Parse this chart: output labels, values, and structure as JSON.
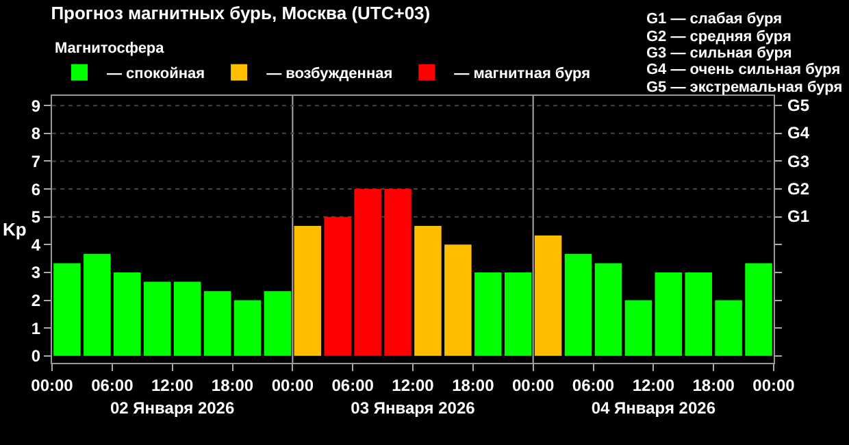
{
  "chart_data": {
    "type": "bar",
    "title": "Прогноз магнитных бурь, Москва (UTC+03)",
    "ylabel": "Kp",
    "legend_title": "Магнитосфера",
    "legend": "top left",
    "grid": false,
    "x": [
      "2026-01-02T01:30",
      "2026-01-02T04:30",
      "2026-01-02T07:30",
      "2026-01-02T10:30",
      "2026-01-02T13:30",
      "2026-01-02T16:30",
      "2026-01-02T19:30",
      "2026-01-02T22:30",
      "2026-01-03T01:30",
      "2026-01-03T04:30",
      "2026-01-03T07:30",
      "2026-01-03T10:30",
      "2026-01-03T13:30",
      "2026-01-03T16:30",
      "2026-01-03T19:30",
      "2026-01-03T22:30",
      "2026-01-04T01:30",
      "2026-01-04T04:30",
      "2026-01-04T07:30",
      "2026-01-04T10:30",
      "2026-01-04T13:30",
      "2026-01-04T16:30",
      "2026-01-04T19:30",
      "2026-01-04T22:30"
    ],
    "series": [
      {
        "name": "— спокойная",
        "color": "#00ff00",
        "values": [
          3.33,
          3.67,
          3,
          2.67,
          2.67,
          2.33,
          2,
          2.33,
          null,
          null,
          null,
          null,
          null,
          null,
          3,
          3,
          null,
          3.67,
          3.33,
          2,
          3,
          3,
          2,
          3.33
        ]
      },
      {
        "name": "— возбужденная",
        "color": "#ffbf00",
        "values": [
          null,
          null,
          null,
          null,
          null,
          null,
          null,
          null,
          4.67,
          null,
          null,
          null,
          4.67,
          4,
          null,
          null,
          4.33,
          null,
          null,
          null,
          null,
          null,
          null,
          null
        ]
      },
      {
        "name": "— магнитная буря",
        "color": "#ff0000",
        "values": [
          null,
          null,
          null,
          null,
          null,
          null,
          null,
          null,
          null,
          5,
          6,
          6,
          null,
          null,
          null,
          null,
          null,
          null,
          null,
          null,
          null,
          null,
          null,
          null
        ]
      }
    ],
    "xlim": [
      "2026-01-02T00:00",
      "2026-01-05T00:00"
    ],
    "xticks": [
      {
        "value": "2026-01-02T00:00",
        "label": "00:00"
      },
      {
        "value": "2026-01-02T06:00",
        "label": "06:00"
      },
      {
        "value": "2026-01-02T12:00",
        "label": "12:00"
      },
      {
        "value": "2026-01-02T18:00",
        "label": "18:00"
      },
      {
        "value": "2026-01-03T00:00",
        "label": "00:00"
      },
      {
        "value": "2026-01-03T06:00",
        "label": "06:00"
      },
      {
        "value": "2026-01-03T12:00",
        "label": "12:00"
      },
      {
        "value": "2026-01-03T18:00",
        "label": "18:00"
      },
      {
        "value": "2026-01-04T00:00",
        "label": "00:00"
      },
      {
        "value": "2026-01-04T06:00",
        "label": "06:00"
      },
      {
        "value": "2026-01-04T12:00",
        "label": "12:00"
      },
      {
        "value": "2026-01-04T18:00",
        "label": "18:00"
      },
      {
        "value": "2026-01-05T00:00",
        "label": "00:00"
      }
    ],
    "x2lim": [
      "2026-01-02T00:00",
      "2026-01-05T00:00"
    ],
    "x2ticks": [
      {
        "value": "2026-01-02T12:00",
        "label": "02 Января 2026"
      },
      {
        "value": "2026-01-03T12:00",
        "label": "03 Января 2026"
      },
      {
        "value": "2026-01-04T12:00",
        "label": "04 Января 2026"
      }
    ],
    "ylim": [
      -0.25,
      9.35
    ],
    "yticks": [
      0,
      1,
      2,
      3,
      4,
      5,
      6,
      7,
      8,
      9
    ],
    "ref_lines": [
      {
        "axis": "x",
        "value": "2026-01-03T00:00",
        "color": "#aaaaaa"
      },
      {
        "axis": "x",
        "value": "2026-01-04T00:00",
        "color": "#aaaaaa"
      },
      {
        "axis": "y",
        "value": 5,
        "label": "G1",
        "color": "#444444",
        "line_style": "dotted"
      },
      {
        "axis": "y",
        "value": 6,
        "label": "G2",
        "color": "#444444",
        "line_style": "dotted"
      },
      {
        "axis": "y",
        "value": 7,
        "label": "G3",
        "color": "#444444",
        "line_style": "dotted"
      },
      {
        "axis": "y",
        "value": 8,
        "label": "G4",
        "color": "#444444",
        "line_style": "dotted"
      },
      {
        "axis": "y",
        "value": 9,
        "label": "G5",
        "color": "#444444",
        "line_style": "dotted"
      }
    ],
    "annotations": [
      "G1 — слабая буря",
      "G2 — средняя буря",
      "G3 — сильная буря",
      "G4 — очень сильная буря",
      "G5 — экстремальная буря"
    ]
  }
}
